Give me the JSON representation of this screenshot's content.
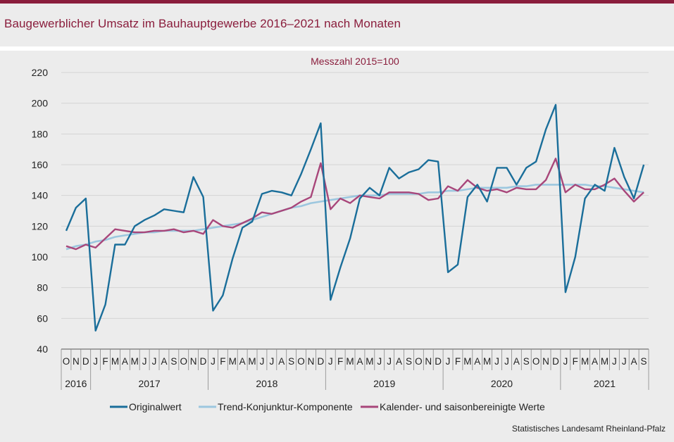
{
  "page": {
    "title": "Baugewerblicher Umsatz im Bauhauptgewerbe 2016–2021 nach Monaten",
    "source": "Statistisches Landesamt Rheinland-Pfalz"
  },
  "chart_data": {
    "type": "line",
    "subtitle": "Messzahl 2015=100",
    "ylim": [
      40,
      220
    ],
    "yticks": [
      40,
      60,
      80,
      100,
      120,
      140,
      160,
      180,
      200,
      220
    ],
    "grid": "horizontal",
    "legend_position": "bottom",
    "month_labels": [
      "O",
      "N",
      "D",
      "J",
      "F",
      "M",
      "A",
      "M",
      "J",
      "J",
      "A",
      "S",
      "O",
      "N",
      "D",
      "J",
      "F",
      "M",
      "A",
      "M",
      "J",
      "J",
      "A",
      "S",
      "O",
      "N",
      "D",
      "J",
      "F",
      "M",
      "A",
      "M",
      "J",
      "J",
      "A",
      "S",
      "O",
      "N",
      "D",
      "J",
      "F",
      "M",
      "A",
      "M",
      "J",
      "J",
      "A",
      "S",
      "O",
      "N",
      "D",
      "J",
      "F",
      "M",
      "A",
      "M",
      "J",
      "J",
      "A",
      "S"
    ],
    "year_groups": [
      {
        "label": "2016",
        "start": 0,
        "count": 3
      },
      {
        "label": "2017",
        "start": 3,
        "count": 12
      },
      {
        "label": "2018",
        "start": 15,
        "count": 12
      },
      {
        "label": "2019",
        "start": 27,
        "count": 12
      },
      {
        "label": "2020",
        "start": 39,
        "count": 12
      },
      {
        "label": "2021",
        "start": 51,
        "count": 9
      }
    ],
    "series": [
      {
        "name": "Originalwert",
        "color": "#1a6e9a",
        "values": [
          117,
          132,
          138,
          52,
          69,
          108,
          108,
          120,
          124,
          127,
          131,
          130,
          129,
          152,
          139,
          65,
          75,
          99,
          119,
          123,
          141,
          143,
          142,
          140,
          154,
          170,
          187,
          72,
          93,
          112,
          138,
          145,
          140,
          158,
          151,
          155,
          157,
          163,
          162,
          90,
          95,
          139,
          147,
          136,
          158,
          158,
          147,
          158,
          162,
          183,
          199,
          77,
          100,
          138,
          147,
          143,
          171,
          152,
          138,
          160
        ]
      },
      {
        "name": "Trend-Konjunktur-Komponente",
        "color": "#9cc7df",
        "values": [
          105,
          107,
          108,
          110,
          111,
          113,
          114,
          115,
          116,
          116,
          117,
          117,
          117,
          117,
          118,
          119,
          120,
          121,
          122,
          124,
          126,
          128,
          130,
          132,
          133,
          135,
          136,
          137,
          138,
          139,
          140,
          140,
          140,
          141,
          141,
          141,
          141,
          142,
          142,
          143,
          143,
          144,
          145,
          145,
          145,
          145,
          146,
          146,
          147,
          147,
          147,
          147,
          147,
          147,
          146,
          146,
          145,
          144,
          143,
          142
        ]
      },
      {
        "name": "Kalender- und saisonbereinigte Werte",
        "color": "#a8467a",
        "values": [
          107,
          105,
          108,
          106,
          112,
          118,
          117,
          116,
          116,
          117,
          117,
          118,
          116,
          117,
          115,
          124,
          120,
          119,
          122,
          125,
          129,
          128,
          130,
          132,
          136,
          139,
          161,
          131,
          138,
          135,
          140,
          139,
          138,
          142,
          142,
          142,
          141,
          137,
          138,
          146,
          143,
          150,
          145,
          143,
          144,
          142,
          145,
          144,
          144,
          150,
          164,
          142,
          147,
          144,
          144,
          147,
          151,
          143,
          136,
          142
        ]
      }
    ]
  }
}
